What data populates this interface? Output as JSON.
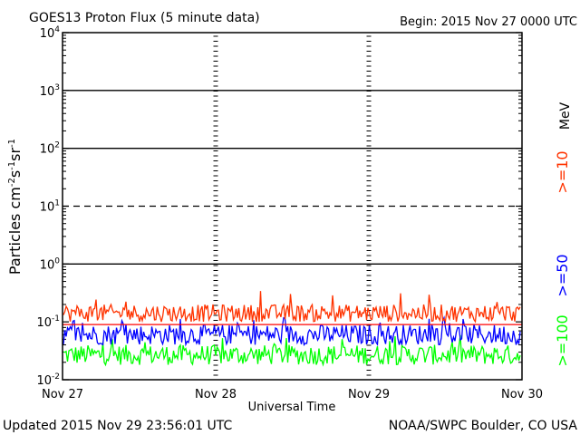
{
  "chart_data": {
    "type": "line",
    "title": "GOES13 Proton Flux (5 minute data)",
    "begin_label": "Begin: 2015 Nov 27 0000 UTC",
    "xlabel": "Universal Time",
    "ylabel_main": "Particles cm",
    "ylabel_sup1": "-2",
    "ylabel_mid1": "s",
    "ylabel_sup2": "-1",
    "ylabel_mid2": "sr",
    "ylabel_sup3": "-1",
    "x_ticks": [
      "Nov 27",
      "Nov 28",
      "Nov 29",
      "Nov 30"
    ],
    "xlim_days": [
      0,
      3
    ],
    "y_scale": "log",
    "ylim": [
      0.01,
      10000
    ],
    "y_ticks": [
      {
        "base": "10",
        "exp": "-2",
        "value": 0.01
      },
      {
        "base": "10",
        "exp": "-1",
        "value": 0.1
      },
      {
        "base": "10",
        "exp": "0",
        "value": 1
      },
      {
        "base": "10",
        "exp": "1",
        "value": 10
      },
      {
        "base": "10",
        "exp": "2",
        "value": 100
      },
      {
        "base": "10",
        "exp": "3",
        "value": 1000
      },
      {
        "base": "10",
        "exp": "4",
        "value": 10000
      }
    ],
    "threshold_lines": [
      {
        "value": 1000,
        "style": "solid"
      },
      {
        "value": 100,
        "style": "solid"
      },
      {
        "value": 10,
        "style": "dashed"
      },
      {
        "value": 1,
        "style": "solid"
      }
    ],
    "reference_line": {
      "value": 0.09,
      "color": "#ff0000"
    },
    "series": [
      {
        "name": ">=10",
        "color": "#ff3300",
        "typical": [
          0.1,
          0.2
        ],
        "spikes_to": 0.37
      },
      {
        "name": ">=50",
        "color": "#0000ff",
        "typical": [
          0.04,
          0.09
        ],
        "spikes_to": 0.12
      },
      {
        "name": ">=100",
        "color": "#00ff00",
        "typical": [
          0.018,
          0.04
        ],
        "spikes_to": 0.06
      }
    ],
    "unit_label": "MeV",
    "grid": false
  },
  "footer": {
    "updated": "Updated 2015 Nov 29 23:56:01 UTC",
    "source": "NOAA/SWPC Boulder, CO USA"
  }
}
